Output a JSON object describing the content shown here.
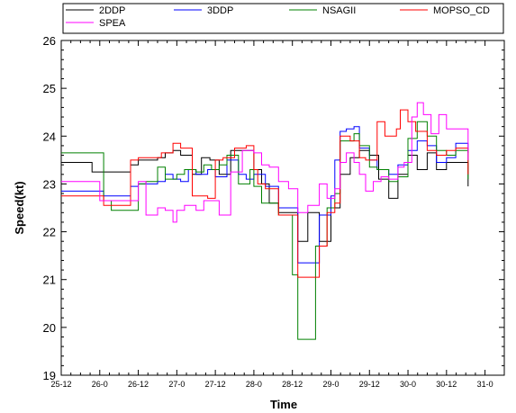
{
  "chart_data": {
    "type": "line",
    "step": true,
    "xlabel": "Time",
    "ylabel": "Speed(kt)",
    "ylim": [
      19,
      26
    ],
    "yticks": [
      19,
      20,
      21,
      22,
      23,
      24,
      25,
      26
    ],
    "xlim": [
      25.5,
      31.25
    ],
    "x_ticks": [
      {
        "value": 25.5,
        "label": "25-12"
      },
      {
        "value": 26.0,
        "label": "26-0"
      },
      {
        "value": 26.5,
        "label": "26-12"
      },
      {
        "value": 27.0,
        "label": "27-0"
      },
      {
        "value": 27.5,
        "label": "27-12"
      },
      {
        "value": 28.0,
        "label": "28-0"
      },
      {
        "value": 28.5,
        "label": "28-12"
      },
      {
        "value": 29.0,
        "label": "29-0"
      },
      {
        "value": 29.5,
        "label": "29-12"
      },
      {
        "value": 30.0,
        "label": "30-0"
      },
      {
        "value": 30.5,
        "label": "30-12"
      },
      {
        "value": 31.0,
        "label": "31-0"
      }
    ],
    "grid": false,
    "legend_position": "top",
    "series": [
      {
        "name": "2DDP",
        "color": "#000000",
        "x": [
          25.5,
          25.65,
          25.9,
          26.05,
          26.25,
          26.4,
          26.5,
          26.65,
          26.75,
          26.85,
          26.95,
          27.05,
          27.2,
          27.32,
          27.43,
          27.55,
          27.7,
          27.85,
          28.0,
          28.1,
          28.2,
          28.32,
          28.45,
          28.57,
          28.7,
          28.85,
          29.0,
          29.12,
          29.25,
          29.37,
          29.5,
          29.62,
          29.75,
          29.87,
          30.0,
          30.12,
          30.25,
          30.37,
          30.5,
          30.62,
          30.75,
          30.78
        ],
        "y": [
          23.45,
          23.45,
          23.25,
          23.25,
          23.25,
          23.4,
          23.5,
          23.5,
          23.55,
          23.65,
          23.7,
          23.6,
          23.2,
          23.55,
          23.5,
          23.2,
          23.7,
          23.7,
          23.3,
          23.0,
          22.6,
          22.4,
          22.4,
          21.8,
          22.4,
          21.8,
          22.5,
          23.2,
          23.55,
          23.7,
          23.6,
          23.1,
          22.7,
          23.2,
          23.6,
          23.3,
          23.65,
          23.3,
          23.45,
          23.45,
          23.45,
          22.95
        ]
      },
      {
        "name": "3DDP",
        "color": "#0000ff",
        "x": [
          25.5,
          25.9,
          26.05,
          26.25,
          26.4,
          26.5,
          26.65,
          26.75,
          26.85,
          26.95,
          27.05,
          27.15,
          27.25,
          27.4,
          27.5,
          27.65,
          27.8,
          27.9,
          28.0,
          28.15,
          28.32,
          28.45,
          28.57,
          28.7,
          28.85,
          29.0,
          29.05,
          29.12,
          29.2,
          29.3,
          29.37,
          29.5,
          29.6,
          29.75,
          29.87,
          30.0,
          30.12,
          30.25,
          30.37,
          30.5,
          30.62,
          30.75,
          30.78
        ],
        "y": [
          22.85,
          22.85,
          22.75,
          22.75,
          22.95,
          23.0,
          23.0,
          23.05,
          23.2,
          23.1,
          23.05,
          23.3,
          23.2,
          23.3,
          23.15,
          23.5,
          23.2,
          23.1,
          23.2,
          22.95,
          22.5,
          22.5,
          21.35,
          21.35,
          22.35,
          22.75,
          23.5,
          24.1,
          24.15,
          24.2,
          23.75,
          23.5,
          23.3,
          23.2,
          23.4,
          23.7,
          23.9,
          23.8,
          23.45,
          23.55,
          23.85,
          23.85,
          23.65
        ]
      },
      {
        "name": "NSAGII",
        "color": "#008000",
        "x": [
          25.5,
          25.9,
          26.05,
          26.15,
          26.4,
          26.5,
          26.6,
          26.75,
          26.85,
          27.0,
          27.1,
          27.25,
          27.35,
          27.45,
          27.55,
          27.65,
          27.8,
          27.95,
          28.0,
          28.1,
          28.32,
          28.5,
          28.57,
          28.65,
          28.8,
          28.95,
          29.05,
          29.12,
          29.3,
          29.37,
          29.5,
          29.6,
          29.75,
          29.87,
          30.0,
          30.12,
          30.25,
          30.37,
          30.5,
          30.62,
          30.75,
          30.78
        ],
        "y": [
          23.65,
          23.65,
          22.65,
          22.45,
          22.45,
          23.0,
          23.05,
          23.35,
          23.1,
          23.2,
          23.3,
          23.25,
          23.4,
          23.3,
          23.4,
          23.6,
          23.0,
          23.3,
          22.95,
          22.6,
          22.35,
          21.1,
          19.75,
          19.75,
          21.7,
          22.5,
          22.8,
          23.9,
          24.05,
          23.8,
          23.35,
          23.3,
          23.05,
          23.15,
          23.95,
          24.3,
          24.0,
          23.7,
          23.6,
          23.7,
          23.7,
          23.1
        ]
      },
      {
        "name": "MOPSO_CD",
        "color": "#ff0000",
        "x": [
          25.5,
          25.9,
          26.05,
          26.25,
          26.4,
          26.5,
          26.65,
          26.8,
          26.95,
          27.05,
          27.2,
          27.3,
          27.4,
          27.5,
          27.6,
          27.75,
          27.9,
          28.0,
          28.05,
          28.15,
          28.32,
          28.5,
          28.57,
          28.7,
          28.85,
          28.95,
          29.05,
          29.12,
          29.25,
          29.37,
          29.45,
          29.6,
          29.7,
          29.85,
          29.9,
          30.0,
          30.1,
          30.25,
          30.37,
          30.5,
          30.62,
          30.75,
          30.78
        ],
        "y": [
          22.75,
          22.75,
          22.55,
          22.55,
          23.5,
          23.55,
          23.55,
          23.65,
          23.85,
          23.75,
          22.75,
          22.75,
          22.7,
          23.5,
          23.55,
          23.75,
          23.8,
          23.3,
          23.0,
          22.9,
          22.35,
          22.35,
          21.05,
          21.05,
          21.7,
          22.4,
          22.6,
          24.0,
          23.9,
          23.55,
          23.5,
          24.3,
          24.0,
          24.15,
          24.55,
          24.3,
          24.1,
          23.7,
          23.6,
          23.7,
          23.75,
          23.75,
          23.2
        ]
      },
      {
        "name": "SPEA",
        "color": "#ff00ff",
        "x": [
          25.5,
          25.9,
          26.0,
          26.25,
          26.5,
          26.6,
          26.75,
          26.85,
          26.95,
          27.0,
          27.1,
          27.25,
          27.35,
          27.45,
          27.55,
          27.7,
          27.85,
          28.0,
          28.1,
          28.2,
          28.32,
          28.45,
          28.57,
          28.7,
          28.85,
          28.95,
          29.05,
          29.12,
          29.2,
          29.3,
          29.37,
          29.45,
          29.55,
          29.65,
          29.75,
          29.87,
          29.95,
          30.05,
          30.12,
          30.2,
          30.3,
          30.4,
          30.5,
          30.62,
          30.75,
          30.78
        ],
        "y": [
          23.05,
          23.05,
          22.65,
          22.65,
          23.05,
          22.35,
          22.5,
          22.45,
          22.2,
          22.45,
          22.55,
          22.45,
          22.65,
          22.65,
          22.35,
          23.25,
          23.7,
          23.65,
          23.4,
          23.35,
          23.05,
          22.9,
          22.4,
          22.55,
          23.0,
          22.7,
          22.9,
          23.45,
          23.65,
          23.45,
          23.2,
          22.85,
          23.05,
          23.15,
          23.1,
          23.35,
          23.45,
          24.4,
          24.7,
          24.45,
          24.05,
          24.45,
          24.15,
          24.15,
          24.15,
          23.5
        ]
      }
    ]
  }
}
